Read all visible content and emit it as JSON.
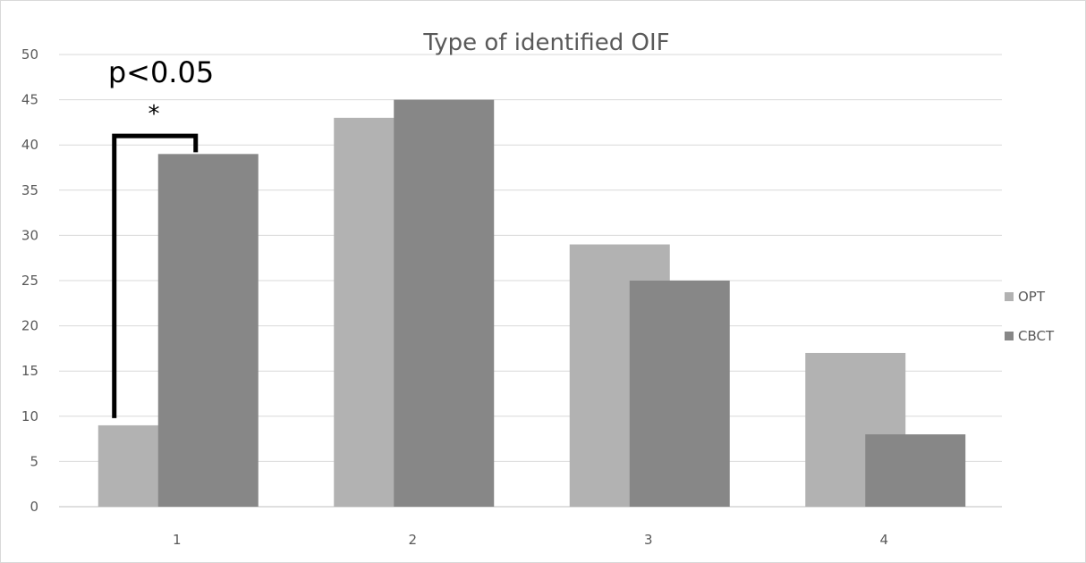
{
  "chart_data": {
    "type": "bar",
    "title": "Type of identified OIF",
    "xlabel": "",
    "ylabel": "",
    "categories": [
      "1",
      "2",
      "3",
      "4"
    ],
    "series": [
      {
        "name": "OPT",
        "values": [
          9,
          43,
          29,
          17
        ],
        "color": "#b2b2b2"
      },
      {
        "name": "CBCT",
        "values": [
          39,
          45,
          25,
          8
        ],
        "color": "#878787"
      }
    ],
    "ylim": [
      0,
      50
    ],
    "yticks": [
      "0",
      "5",
      "10",
      "15",
      "20",
      "25",
      "30",
      "35",
      "40",
      "45",
      "50"
    ],
    "grid": true,
    "legend_position": "right",
    "annotation": {
      "text": "p<0.05",
      "marker": "*",
      "category": "1"
    }
  }
}
